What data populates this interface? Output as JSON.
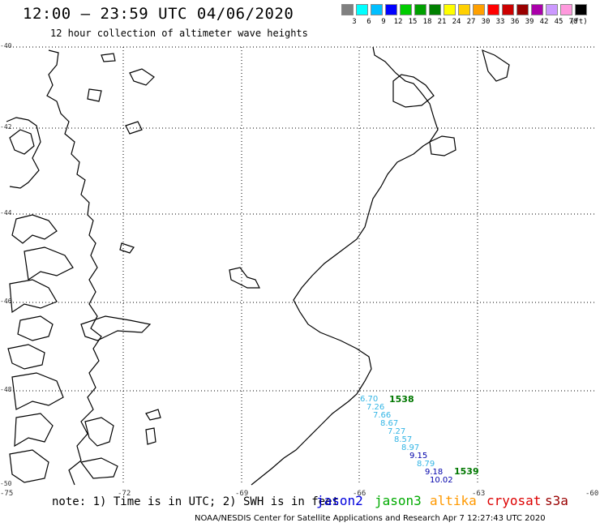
{
  "header": {
    "title": "12:00 — 23:59 UTC 04/06/2020",
    "subtitle": "12 hour collection of altimeter wave heights"
  },
  "colorbar": {
    "unit": "(ft)",
    "bins": [
      {
        "label": "3",
        "color": "#808080"
      },
      {
        "label": "6",
        "color": "#00ffff"
      },
      {
        "label": "9",
        "color": "#00bfff"
      },
      {
        "label": "12",
        "color": "#0000ff"
      },
      {
        "label": "15",
        "color": "#00cc00"
      },
      {
        "label": "18",
        "color": "#00a000"
      },
      {
        "label": "21",
        "color": "#008000"
      },
      {
        "label": "24",
        "color": "#ffff00"
      },
      {
        "label": "27",
        "color": "#ffd000"
      },
      {
        "label": "30",
        "color": "#ffa000"
      },
      {
        "label": "33",
        "color": "#ff0000"
      },
      {
        "label": "36",
        "color": "#cc0000"
      },
      {
        "label": "39",
        "color": "#990000"
      },
      {
        "label": "42",
        "color": "#aa00aa"
      },
      {
        "label": "45",
        "color": "#cc99ff"
      },
      {
        "label": "70",
        "color": "#ff99dd"
      },
      {
        "label": "",
        "color": "#000000"
      }
    ]
  },
  "map": {
    "lat_labels": [
      "-40",
      "-42",
      "-44",
      "-46",
      "-48",
      "-50"
    ],
    "lon_labels": [
      "-75",
      "-72",
      "-69",
      "-66",
      "-63",
      "-60"
    ],
    "observations": [
      {
        "value": "6.70",
        "color": "#33b5e5"
      },
      {
        "value": "7.26",
        "color": "#33b5e5"
      },
      {
        "value": "7.66",
        "color": "#33b5e5"
      },
      {
        "value": "8.67",
        "color": "#33b5e5"
      },
      {
        "value": "7.27",
        "color": "#33b5e5"
      },
      {
        "value": "8.57",
        "color": "#33b5e5"
      },
      {
        "value": "8.97",
        "color": "#33b5e5"
      },
      {
        "value": "9.15",
        "color": "#0000aa"
      },
      {
        "value": "8.79",
        "color": "#33b5e5"
      },
      {
        "value": "9.18",
        "color": "#0000aa"
      },
      {
        "value": "10.02",
        "color": "#0000aa"
      }
    ],
    "time_marks": [
      {
        "value": "1538",
        "color": "#007700"
      },
      {
        "value": "1539",
        "color": "#007700"
      }
    ]
  },
  "note": "note: 1) Time is in UTC; 2) SWH is in feet",
  "satellites": [
    {
      "name": "jason2",
      "color": "#0000dd"
    },
    {
      "name": "jason3",
      "color": "#00aa00"
    },
    {
      "name": "altika",
      "color": "#ff9900"
    },
    {
      "name": "cryosat",
      "color": "#dd0000"
    },
    {
      "name": "s3a",
      "color": "#990000"
    }
  ],
  "footer": "NOAA/NESDIS Center for Satellite Applications and Research   Apr  7 12:27:43 UTC 2020"
}
